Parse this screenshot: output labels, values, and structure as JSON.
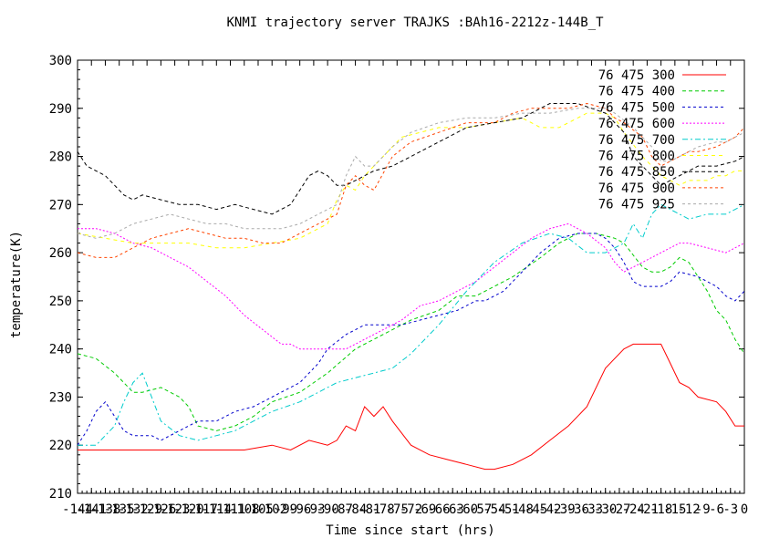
{
  "chart_data": {
    "type": "line",
    "title": "KNMI trajectory server TRAJKS :BAh16-2212z-144B_T",
    "xlabel": "Time since start (hrs)",
    "ylabel": "temperature(K)",
    "xlim": [
      -144,
      0
    ],
    "ylim": [
      210,
      300
    ],
    "xticks": [
      "-144",
      "-141",
      "-138",
      "-135",
      "-132",
      "-129",
      "-126",
      "-123",
      "-120",
      "-117",
      "-114",
      "-111",
      "-108",
      "-105",
      "-102",
      "-99",
      "-96",
      "-93",
      "-90",
      "-87",
      "-84",
      "-81",
      "-78",
      "-75",
      "-72",
      "-69",
      "-66",
      "-63",
      "-60",
      "-57",
      "-54",
      "-51",
      "-48",
      "-45",
      "-42",
      "-39",
      "-36",
      "-33",
      "-30",
      "-27",
      "-24",
      "-21",
      "-18",
      "-15",
      "-12",
      "-9",
      "-6",
      "-3",
      "0"
    ],
    "yticks": [
      "210",
      "220",
      "230",
      "240",
      "250",
      "260",
      "270",
      "280",
      "290",
      "300"
    ],
    "grid": false,
    "legend_position": "top-right",
    "series": [
      {
        "name": "76 475 300",
        "color": "#ff0000",
        "dash": "",
        "x": [
          -144,
          -140,
          -136,
          -132,
          -126,
          -120,
          -114,
          -108,
          -102,
          -98,
          -94,
          -90,
          -88,
          -86,
          -84,
          -82,
          -80,
          -78,
          -76,
          -72,
          -68,
          -64,
          -60,
          -56,
          -54,
          -50,
          -46,
          -42,
          -38,
          -34,
          -30,
          -26,
          -24,
          -20,
          -18,
          -16,
          -14,
          -12,
          -10,
          -6,
          -4,
          -2,
          0
        ],
        "y": [
          219,
          219,
          219,
          219,
          219,
          219,
          219,
          219,
          220,
          219,
          221,
          220,
          221,
          224,
          223,
          228,
          226,
          228,
          225,
          220,
          218,
          217,
          216,
          215,
          215,
          216,
          218,
          221,
          224,
          228,
          236,
          240,
          241,
          241,
          241,
          237,
          233,
          232,
          230,
          229,
          227,
          224,
          224
        ]
      },
      {
        "name": "76 475 400",
        "color": "#00cc00",
        "dash": "4,3",
        "x": [
          -144,
          -140,
          -136,
          -132,
          -130,
          -126,
          -122,
          -120,
          -118,
          -114,
          -110,
          -106,
          -102,
          -96,
          -90,
          -84,
          -78,
          -72,
          -66,
          -62,
          -58,
          -54,
          -50,
          -44,
          -40,
          -36,
          -32,
          -28,
          -26,
          -22,
          -20,
          -18,
          -16,
          -14,
          -12,
          -10,
          -8,
          -6,
          -4,
          -2,
          0
        ],
        "y": [
          239,
          238,
          235,
          231,
          231,
          232,
          230,
          228,
          224,
          223,
          224,
          226,
          229,
          231,
          235,
          240,
          243,
          246,
          248,
          251,
          251,
          253,
          255,
          259,
          262,
          264,
          264,
          263,
          262,
          257,
          256,
          256,
          257,
          259,
          258,
          255,
          252,
          248,
          246,
          242,
          239
        ]
      },
      {
        "name": "76 475 500",
        "color": "#0000cc",
        "dash": "3,3",
        "x": [
          -144,
          -142,
          -140,
          -138,
          -136,
          -134,
          -132,
          -130,
          -128,
          -126,
          -122,
          -118,
          -114,
          -110,
          -106,
          -102,
          -96,
          -92,
          -90,
          -86,
          -84,
          -82,
          -78,
          -74,
          -70,
          -66,
          -62,
          -58,
          -56,
          -52,
          -48,
          -44,
          -40,
          -36,
          -32,
          -30,
          -28,
          -26,
          -24,
          -22,
          -20,
          -18,
          -16,
          -14,
          -10,
          -6,
          -4,
          -2,
          0
        ],
        "y": [
          220,
          223,
          227,
          229,
          226,
          223,
          222,
          222,
          222,
          221,
          223,
          225,
          225,
          227,
          228,
          230,
          233,
          237,
          240,
          243,
          244,
          245,
          245,
          245,
          246,
          247,
          248,
          250,
          250,
          252,
          256,
          260,
          263,
          264,
          264,
          263,
          261,
          258,
          254,
          253,
          253,
          253,
          254,
          256,
          255,
          253,
          251,
          250,
          252
        ]
      },
      {
        "name": "76 475 600",
        "color": "#ff00ff",
        "dash": "2,2",
        "x": [
          -144,
          -140,
          -136,
          -132,
          -128,
          -124,
          -120,
          -116,
          -112,
          -108,
          -104,
          -100,
          -98,
          -96,
          -94,
          -92,
          -90,
          -86,
          -82,
          -78,
          -74,
          -70,
          -66,
          -62,
          -58,
          -54,
          -50,
          -46,
          -42,
          -38,
          -34,
          -30,
          -28,
          -26,
          -24,
          -22,
          -20,
          -18,
          -16,
          -14,
          -12,
          -8,
          -4,
          -2,
          0
        ],
        "y": [
          265,
          265,
          264,
          262,
          261,
          259,
          257,
          254,
          251,
          247,
          244,
          241,
          241,
          240,
          240,
          240,
          240,
          240,
          242,
          244,
          246,
          249,
          250,
          252,
          254,
          257,
          260,
          263,
          265,
          266,
          264,
          261,
          258,
          256,
          257,
          258,
          259,
          260,
          261,
          262,
          262,
          261,
          260,
          261,
          262
        ]
      },
      {
        "name": "76 475 700",
        "color": "#00cccc",
        "dash": "6,3,2,3",
        "x": [
          -144,
          -140,
          -136,
          -134,
          -132,
          -130,
          -126,
          -122,
          -118,
          -114,
          -110,
          -106,
          -102,
          -96,
          -92,
          -88,
          -84,
          -80,
          -76,
          -72,
          -66,
          -60,
          -54,
          -48,
          -42,
          -38,
          -34,
          -30,
          -28,
          -26,
          -24,
          -22,
          -20,
          -18,
          -16,
          -14,
          -12,
          -8,
          -4,
          0
        ],
        "y": [
          220,
          220,
          224,
          229,
          233,
          235,
          225,
          222,
          221,
          222,
          223,
          225,
          227,
          229,
          231,
          233,
          234,
          235,
          236,
          239,
          245,
          252,
          258,
          262,
          264,
          263,
          260,
          260,
          261,
          262,
          266,
          263,
          268,
          270,
          269,
          268,
          267,
          268,
          268,
          270
        ]
      },
      {
        "name": "76 475 800",
        "color": "#ffff00",
        "dash": "4,4",
        "x": [
          -144,
          -138,
          -132,
          -126,
          -120,
          -114,
          -108,
          -102,
          -96,
          -92,
          -90,
          -88,
          -86,
          -84,
          -82,
          -78,
          -74,
          -70,
          -66,
          -60,
          -54,
          -48,
          -44,
          -40,
          -36,
          -34,
          -30,
          -28,
          -26,
          -22,
          -20,
          -18,
          -16,
          -14,
          -12,
          -10,
          -8,
          -6,
          -4,
          -2,
          0
        ],
        "y": [
          264,
          263,
          262,
          262,
          262,
          261,
          261,
          262,
          263,
          265,
          266,
          271,
          274,
          273,
          276,
          280,
          284,
          285,
          286,
          286,
          287,
          288,
          286,
          286,
          288,
          289,
          289,
          288,
          285,
          280,
          278,
          276,
          275,
          274,
          275,
          275,
          275,
          276,
          276,
          277,
          277
        ]
      },
      {
        "name": "76 475 850",
        "color": "#000000",
        "dash": "4,3",
        "x": [
          -144,
          -142,
          -140,
          -138,
          -136,
          -134,
          -132,
          -130,
          -126,
          -122,
          -118,
          -114,
          -110,
          -106,
          -102,
          -98,
          -96,
          -94,
          -92,
          -90,
          -88,
          -86,
          -84,
          -82,
          -80,
          -76,
          -72,
          -66,
          -60,
          -54,
          -48,
          -42,
          -36,
          -30,
          -28,
          -26,
          -24,
          -22,
          -20,
          -18,
          -16,
          -14,
          -12,
          -10,
          -6,
          -2,
          0
        ],
        "y": [
          281,
          278,
          277,
          276,
          274,
          272,
          271,
          272,
          271,
          270,
          270,
          269,
          270,
          269,
          268,
          270,
          273,
          276,
          277,
          276,
          274,
          274,
          275,
          276,
          277,
          278,
          280,
          283,
          286,
          287,
          288,
          291,
          291,
          289,
          287,
          285,
          280,
          278,
          276,
          274,
          275,
          276,
          277,
          278,
          278,
          279,
          280
        ]
      },
      {
        "name": "76 475 900",
        "color": "#ff4400",
        "dash": "3,3",
        "x": [
          -144,
          -140,
          -136,
          -132,
          -128,
          -124,
          -120,
          -116,
          -112,
          -108,
          -104,
          -100,
          -96,
          -92,
          -88,
          -86,
          -84,
          -82,
          -80,
          -76,
          -72,
          -66,
          -60,
          -54,
          -50,
          -46,
          -42,
          -38,
          -34,
          -30,
          -28,
          -26,
          -22,
          -20,
          -18,
          -16,
          -14,
          -12,
          -10,
          -6,
          -4,
          -2,
          0
        ],
        "y": [
          260,
          259,
          259,
          261,
          263,
          264,
          265,
          264,
          263,
          263,
          262,
          262,
          264,
          266,
          268,
          274,
          276,
          274,
          273,
          280,
          283,
          285,
          287,
          287,
          289,
          290,
          290,
          290,
          291,
          290,
          288,
          287,
          284,
          280,
          278,
          279,
          280,
          281,
          281,
          282,
          283,
          284,
          286
        ]
      },
      {
        "name": "76 475 925",
        "color": "#aaaaaa",
        "dash": "3,3",
        "x": [
          -144,
          -140,
          -136,
          -132,
          -128,
          -124,
          -120,
          -116,
          -112,
          -108,
          -104,
          -100,
          -96,
          -92,
          -88,
          -86,
          -84,
          -82,
          -80,
          -76,
          -72,
          -66,
          -60,
          -54,
          -48,
          -42,
          -36,
          -30,
          -28,
          -24,
          -20,
          -18,
          -16,
          -14,
          -12,
          -10,
          -6,
          -4,
          -2,
          0
        ],
        "y": [
          264,
          263,
          264,
          266,
          267,
          268,
          267,
          266,
          266,
          265,
          265,
          265,
          266,
          268,
          270,
          276,
          280,
          278,
          278,
          282,
          285,
          287,
          288,
          288,
          289,
          289,
          290,
          290,
          289,
          286,
          282,
          279,
          279,
          280,
          281,
          282,
          283,
          283,
          284,
          285
        ]
      }
    ]
  }
}
